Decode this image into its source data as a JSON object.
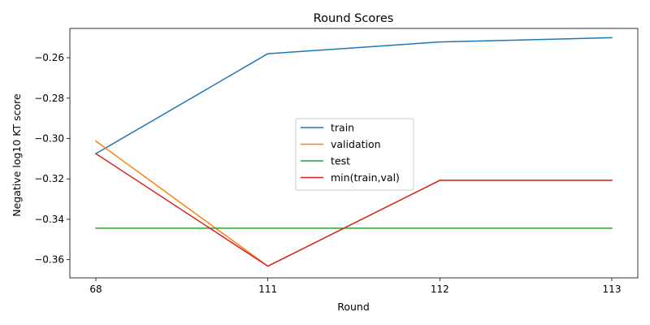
{
  "chart_data": {
    "type": "line",
    "title": "Round Scores",
    "xlabel": "Round",
    "ylabel": "Negative log10 KT score",
    "categories": [
      "68",
      "111",
      "112",
      "113"
    ],
    "ylim": [
      -0.369,
      -0.2455
    ],
    "yticks": [
      -0.36,
      -0.34,
      -0.32,
      -0.3,
      -0.28,
      -0.26
    ],
    "ytick_labels": [
      "−0.36",
      "−0.34",
      "−0.32",
      "−0.30",
      "−0.28",
      "−0.26"
    ],
    "grid": false,
    "legend_position": "center",
    "series": [
      {
        "name": "train",
        "color": "#1f77b4",
        "values": [
          -0.3075,
          -0.258,
          -0.2522,
          -0.2501
        ]
      },
      {
        "name": "validation",
        "color": "#ff7f0e",
        "values": [
          -0.3013,
          -0.3632,
          -0.3207,
          -0.3207
        ]
      },
      {
        "name": "test",
        "color": "#2ca02c",
        "values": [
          -0.3444,
          -0.3444,
          -0.3444,
          -0.3444
        ]
      },
      {
        "name": "min(train,val)",
        "color": "#d62728",
        "values": [
          -0.3075,
          -0.3632,
          -0.3207,
          -0.3207
        ]
      }
    ]
  }
}
